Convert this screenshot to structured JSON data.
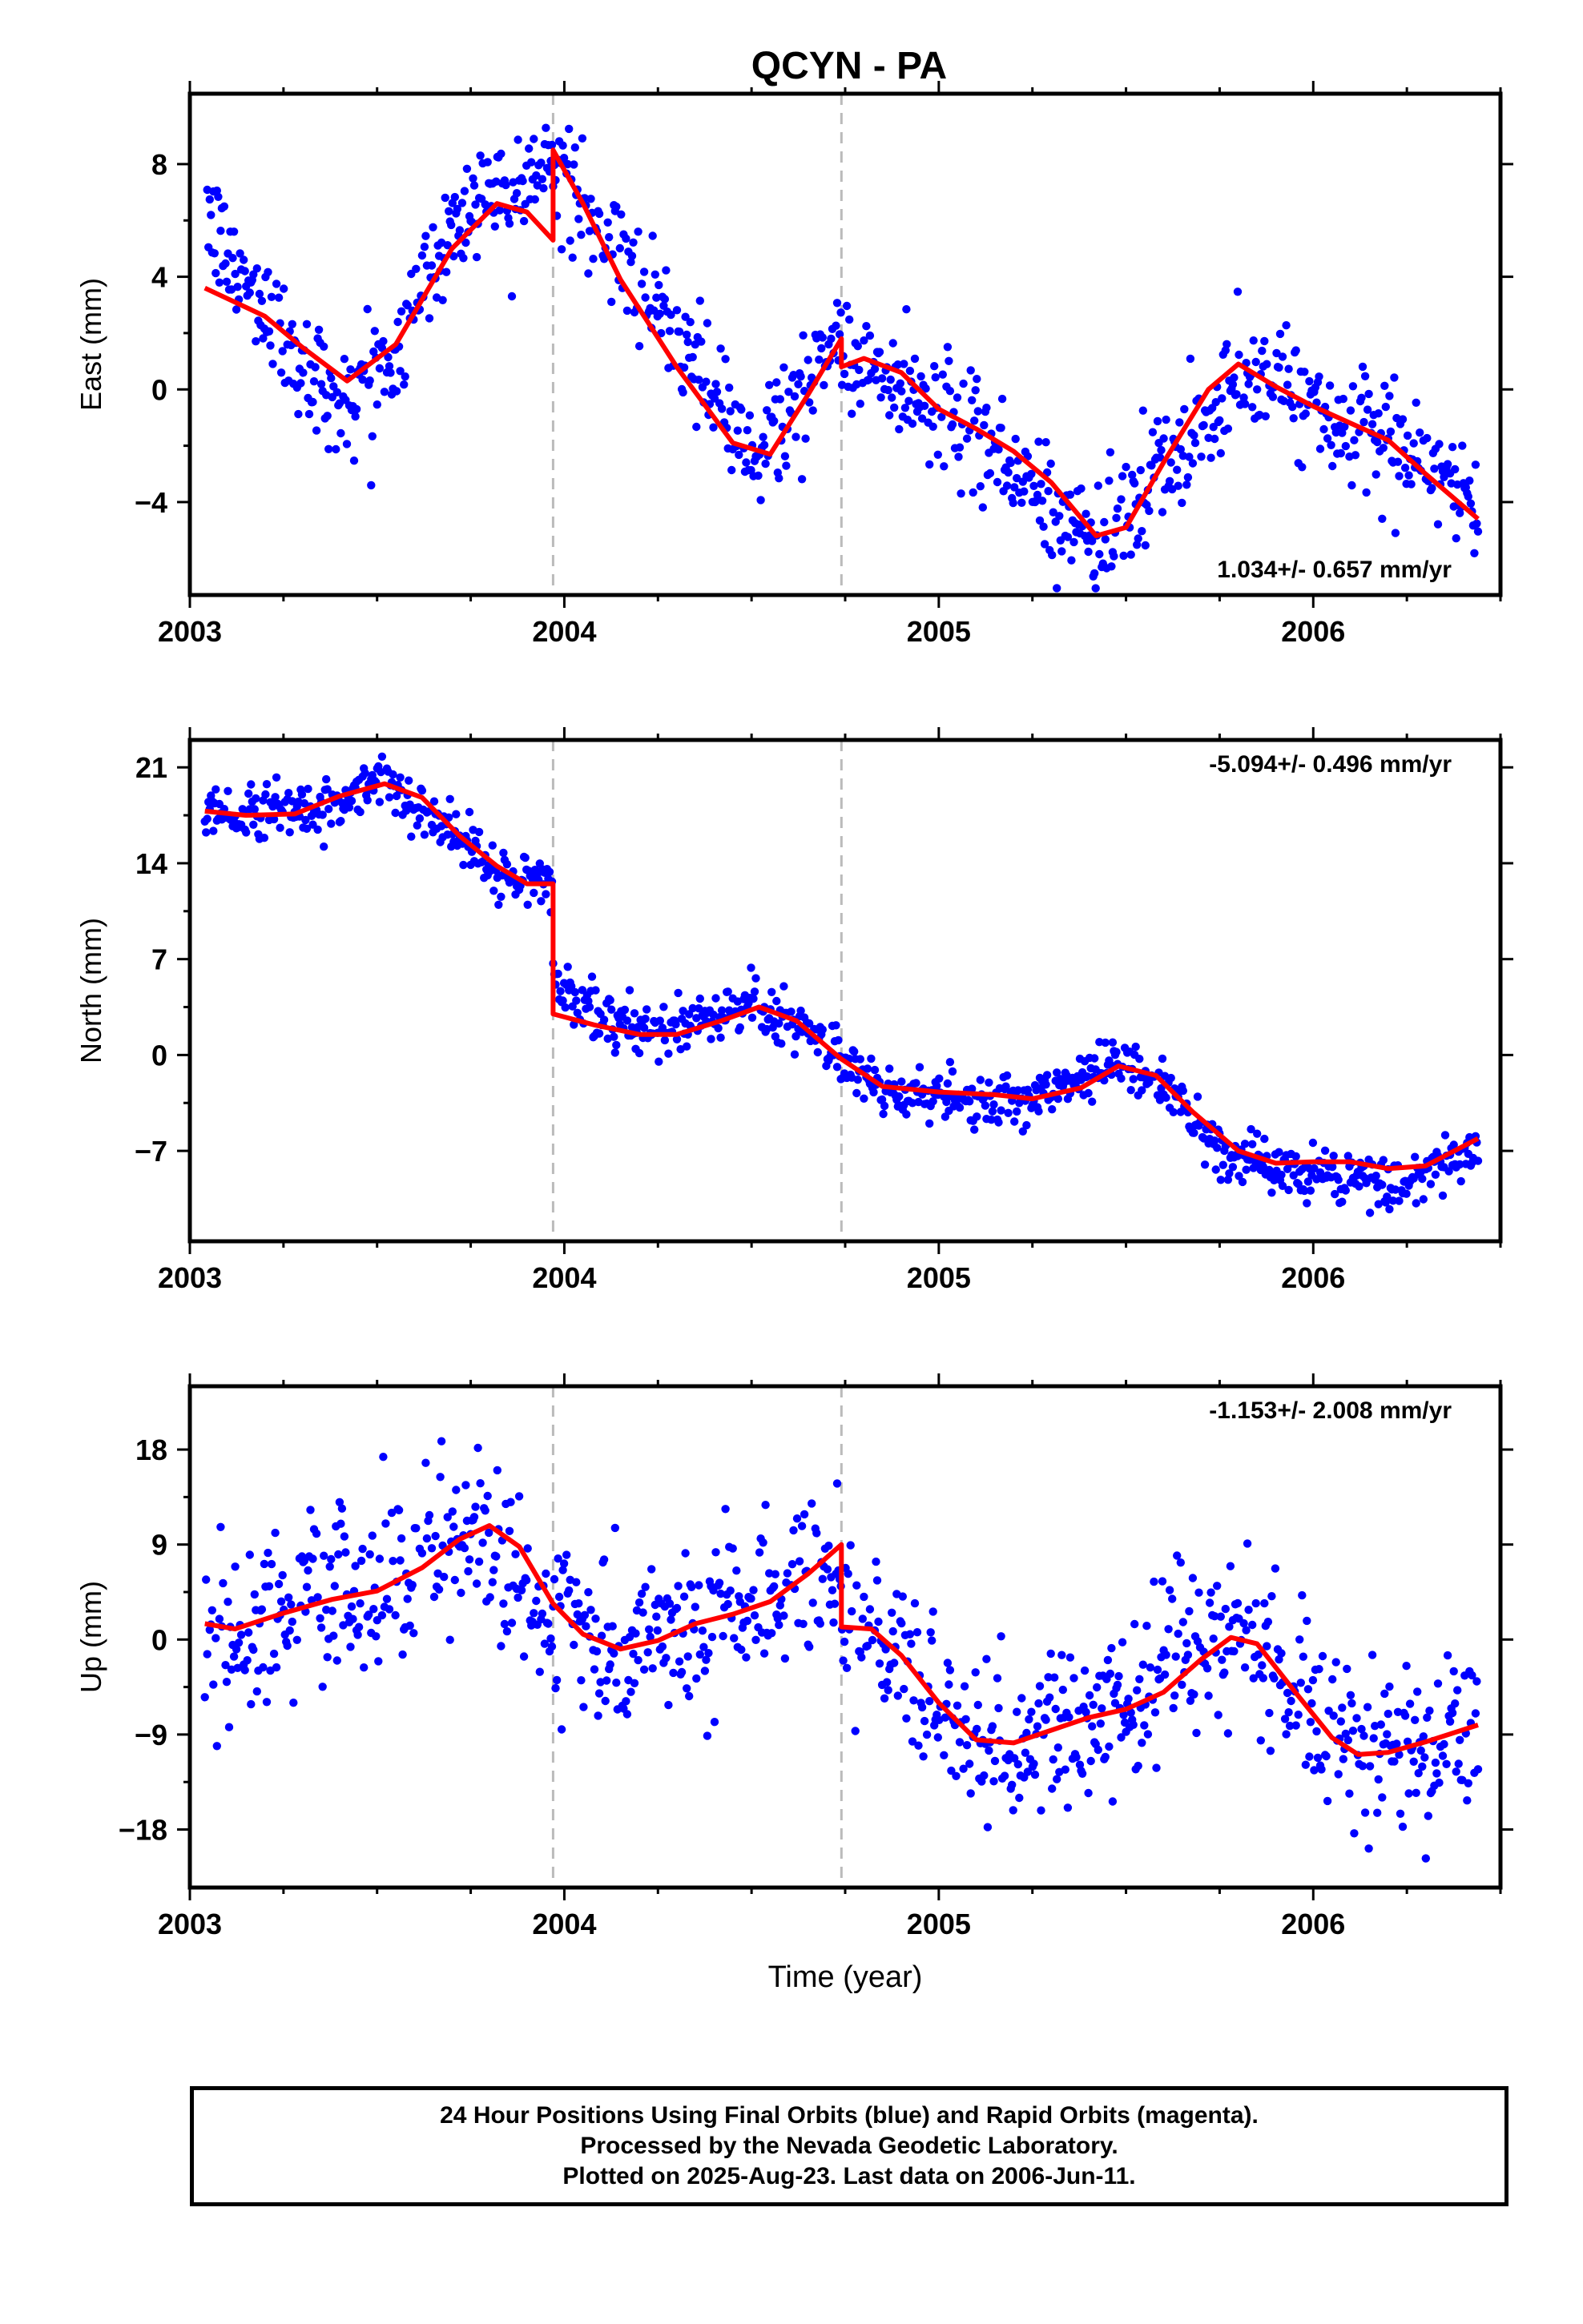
{
  "title": "QCYN - PA",
  "colors": {
    "points": "#0000ff",
    "model": "#ff0000",
    "steps": "#bbbbbb",
    "frame": "#000000"
  },
  "footer": {
    "line1": "24 Hour Positions Using Final Orbits (blue) and Rapid Orbits (magenta).",
    "line2": "Processed by the Nevada Geodetic Laboratory.",
    "line3": "Plotted on 2025-Aug-23. Last data on 2006-Jun-11."
  },
  "chart_data": [
    {
      "type": "scatter",
      "ylabel": "East (mm)",
      "xlabel": "",
      "xlim": [
        2003.0,
        2006.5
      ],
      "ylim": [
        -7.3,
        10.5
      ],
      "xticks": [
        "2003",
        "2004",
        "2005",
        "2006"
      ],
      "yticks": [
        -4,
        0,
        4,
        8
      ],
      "ytick_labels": [
        "−4",
        "0",
        "4",
        "8"
      ],
      "rate_label": "1.034+/- 0.657 mm/yr",
      "rate_position": "bottom-right",
      "step_epochs": [
        2003.97,
        2004.74
      ],
      "series": [
        {
          "kind": "points",
          "noise": 1.0,
          "x_start": 2003.04,
          "x_end": 2006.44,
          "x": [
            2003.04,
            2003.1,
            2003.2,
            2003.3,
            2003.42,
            2003.55,
            2003.7,
            2003.82,
            2003.9,
            2003.97,
            2003.97,
            2004.1,
            2004.3,
            2004.5,
            2004.65,
            2004.74,
            2004.74,
            2004.85,
            2005.0,
            2005.2,
            2005.42,
            2005.6,
            2005.8,
            2005.95,
            2006.1,
            2006.3,
            2006.44
          ],
          "y": [
            6.5,
            4.5,
            3.0,
            0.8,
            -0.2,
            1.5,
            5.8,
            7.5,
            7.5,
            8.0,
            8.0,
            5.5,
            2.0,
            -2.5,
            0.2,
            2.0,
            1.2,
            0.5,
            -0.5,
            -2.8,
            -5.5,
            -3.0,
            0.5,
            0.0,
            -1.5,
            -2.5,
            -4.5
          ]
        },
        {
          "kind": "line",
          "x": [
            2003.04,
            2003.12,
            2003.2,
            2003.3,
            2003.42,
            2003.55,
            2003.7,
            2003.82,
            2003.9,
            2003.97,
            2003.97,
            2004.05,
            2004.15,
            2004.3,
            2004.45,
            2004.55,
            2004.65,
            2004.74,
            2004.74,
            2004.8,
            2004.9,
            2005.0,
            2005.1,
            2005.2,
            2005.3,
            2005.42,
            2005.5,
            2005.6,
            2005.72,
            2005.8,
            2005.9,
            2006.0,
            2006.1,
            2006.2,
            2006.3,
            2006.44
          ],
          "y": [
            3.6,
            3.1,
            2.6,
            1.5,
            0.3,
            1.6,
            5.0,
            6.6,
            6.3,
            5.3,
            8.5,
            6.6,
            3.9,
            0.8,
            -1.9,
            -2.3,
            -0.2,
            1.8,
            0.8,
            1.1,
            0.6,
            -0.7,
            -1.4,
            -2.2,
            -3.3,
            -5.2,
            -4.9,
            -2.6,
            0.0,
            0.9,
            0.1,
            -0.6,
            -1.2,
            -1.8,
            -3.0,
            -4.6
          ]
        }
      ]
    },
    {
      "type": "scatter",
      "ylabel": "North (mm)",
      "xlabel": "",
      "xlim": [
        2003.0,
        2006.5
      ],
      "ylim": [
        -13.6,
        23.0
      ],
      "xticks": [
        "2003",
        "2004",
        "2005",
        "2006"
      ],
      "yticks": [
        -7,
        0,
        7,
        14,
        21
      ],
      "ytick_labels": [
        "−7",
        "0",
        "7",
        "14",
        "21"
      ],
      "rate_label": "-5.094+/- 0.496 mm/yr",
      "rate_position": "top-right",
      "step_epochs": [
        2003.97,
        2004.74
      ],
      "series": [
        {
          "kind": "points",
          "noise": 1.0,
          "x_start": 2003.04,
          "x_end": 2006.44,
          "x": [
            2003.04,
            2003.2,
            2003.35,
            2003.52,
            2003.65,
            2003.8,
            2003.9,
            2003.97,
            2003.97,
            2004.1,
            2004.25,
            2004.5,
            2004.7,
            2004.85,
            2005.0,
            2005.25,
            2005.48,
            2005.62,
            2005.75,
            2005.9,
            2006.1,
            2006.25,
            2006.44
          ],
          "y": [
            18.0,
            17.5,
            18.0,
            19.8,
            17.5,
            14.0,
            12.5,
            12.8,
            5.5,
            2.5,
            1.8,
            3.8,
            0.5,
            -2.5,
            -3.0,
            -3.5,
            -0.3,
            -2.5,
            -7.0,
            -8.5,
            -9.0,
            -9.5,
            -6.5
          ]
        },
        {
          "kind": "line",
          "x": [
            2003.04,
            2003.15,
            2003.28,
            2003.4,
            2003.52,
            2003.62,
            2003.72,
            2003.82,
            2003.9,
            2003.97,
            2003.97,
            2004.08,
            2004.2,
            2004.3,
            2004.42,
            2004.52,
            2004.62,
            2004.74,
            2004.85,
            2005.0,
            2005.15,
            2005.25,
            2005.38,
            2005.48,
            2005.58,
            2005.68,
            2005.8,
            2005.9,
            2006.0,
            2006.1,
            2006.2,
            2006.3,
            2006.44
          ],
          "y": [
            17.8,
            17.5,
            17.6,
            18.9,
            19.8,
            18.8,
            16.0,
            13.8,
            12.5,
            12.5,
            3.0,
            2.2,
            1.5,
            1.5,
            2.5,
            3.5,
            2.5,
            -0.3,
            -2.3,
            -2.7,
            -2.9,
            -3.2,
            -2.4,
            -0.8,
            -1.5,
            -4.2,
            -7.0,
            -7.9,
            -7.8,
            -7.8,
            -8.3,
            -8.1,
            -6.1
          ]
        }
      ]
    },
    {
      "type": "scatter",
      "ylabel": "Up (mm)",
      "xlabel": "Time (year)",
      "xlim": [
        2003.0,
        2006.5
      ],
      "ylim": [
        -23.5,
        24.0
      ],
      "xticks": [
        "2003",
        "2004",
        "2005",
        "2006"
      ],
      "yticks": [
        -18,
        -9,
        0,
        9,
        18
      ],
      "ytick_labels": [
        "−18",
        "−9",
        "0",
        "9",
        "18"
      ],
      "rate_label": "-1.153+/- 2.008 mm/yr",
      "rate_position": "top-right",
      "step_epochs": [
        2003.97,
        2004.74
      ],
      "series": [
        {
          "kind": "points",
          "noise": 4.0,
          "x_start": 2003.04,
          "x_end": 2006.44,
          "x": [
            2003.04,
            2003.15,
            2003.3,
            2003.5,
            2003.65,
            2003.8,
            2003.97,
            2004.15,
            2004.35,
            2004.55,
            2004.74,
            2004.74,
            2004.9,
            2005.1,
            2005.3,
            2005.5,
            2005.65,
            2005.8,
            2005.95,
            2006.1,
            2006.3,
            2006.44
          ],
          "y": [
            1.0,
            0.0,
            3.5,
            5.5,
            8.5,
            9.0,
            2.5,
            -1.5,
            2.0,
            3.0,
            8.0,
            1.0,
            -2.0,
            -10.5,
            -8.5,
            -6.0,
            -2.0,
            -0.5,
            -5.0,
            -11.0,
            -10.0,
            -8.5
          ]
        },
        {
          "kind": "line",
          "x": [
            2003.04,
            2003.12,
            2003.25,
            2003.38,
            2003.5,
            2003.62,
            2003.72,
            2003.8,
            2003.88,
            2003.97,
            2004.05,
            2004.15,
            2004.25,
            2004.35,
            2004.45,
            2004.55,
            2004.65,
            2004.74,
            2004.74,
            2004.82,
            2004.9,
            2005.0,
            2005.1,
            2005.2,
            2005.3,
            2005.4,
            2005.5,
            2005.6,
            2005.7,
            2005.78,
            2005.85,
            2005.95,
            2006.05,
            2006.12,
            2006.2,
            2006.3,
            2006.44
          ],
          "y": [
            1.5,
            1.0,
            2.5,
            3.8,
            4.6,
            6.8,
            9.5,
            10.8,
            8.8,
            3.4,
            0.5,
            -0.9,
            -0.1,
            1.5,
            2.4,
            3.6,
            6.2,
            9.0,
            1.2,
            1.0,
            -1.5,
            -6.0,
            -9.5,
            -9.8,
            -8.6,
            -7.4,
            -6.6,
            -5.0,
            -1.9,
            0.2,
            -0.4,
            -4.9,
            -9.3,
            -10.9,
            -10.7,
            -9.7,
            -8.1
          ]
        }
      ]
    }
  ]
}
